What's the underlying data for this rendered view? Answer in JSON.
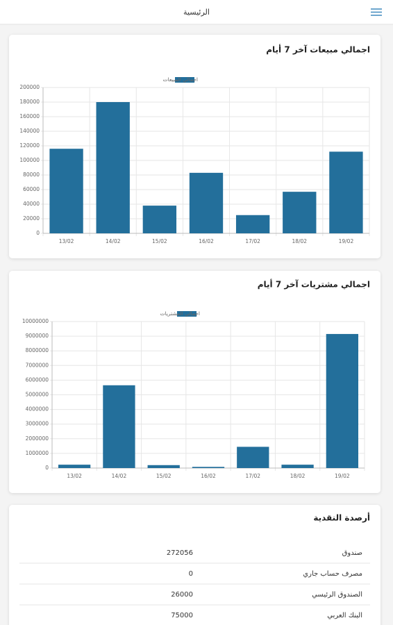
{
  "header": {
    "title": "الرئيسية"
  },
  "chart_data": [
    {
      "type": "bar",
      "title": "اجمالي مبيعات آخر 7 أيام",
      "categories": [
        "13/02",
        "14/02",
        "15/02",
        "16/02",
        "17/02",
        "18/02",
        "19/02"
      ],
      "series": [
        {
          "name": "اجمالي المبيعات",
          "color": "#236f9b",
          "values": [
            116000,
            180000,
            38000,
            83000,
            25000,
            57000,
            112000
          ]
        }
      ],
      "ylim": [
        0,
        200000
      ],
      "yticks": [
        0,
        20000,
        40000,
        60000,
        80000,
        100000,
        120000,
        140000,
        160000,
        180000,
        200000
      ],
      "grid": true
    },
    {
      "type": "bar",
      "title": "اجمالي مشتريات آخر 7 أيام",
      "categories": [
        "13/02",
        "14/02",
        "15/02",
        "16/02",
        "17/02",
        "18/02",
        "19/02"
      ],
      "series": [
        {
          "name": "اجمالي المشتريات",
          "color": "#236f9b",
          "values": [
            230000,
            5650000,
            200000,
            80000,
            1450000,
            230000,
            9150000
          ]
        }
      ],
      "ylim": [
        0,
        10000000
      ],
      "yticks": [
        0,
        1000000,
        2000000,
        3000000,
        4000000,
        5000000,
        6000000,
        7000000,
        8000000,
        9000000,
        10000000
      ],
      "grid": true
    }
  ],
  "cash": {
    "title": "أرصدة النقدية",
    "rows": [
      [
        "صندوق",
        272056
      ],
      [
        "مصرف حساب جاري",
        0
      ],
      [
        "الصندوق الرئيسي",
        26000
      ],
      [
        "البنك العربي",
        75000
      ]
    ]
  }
}
